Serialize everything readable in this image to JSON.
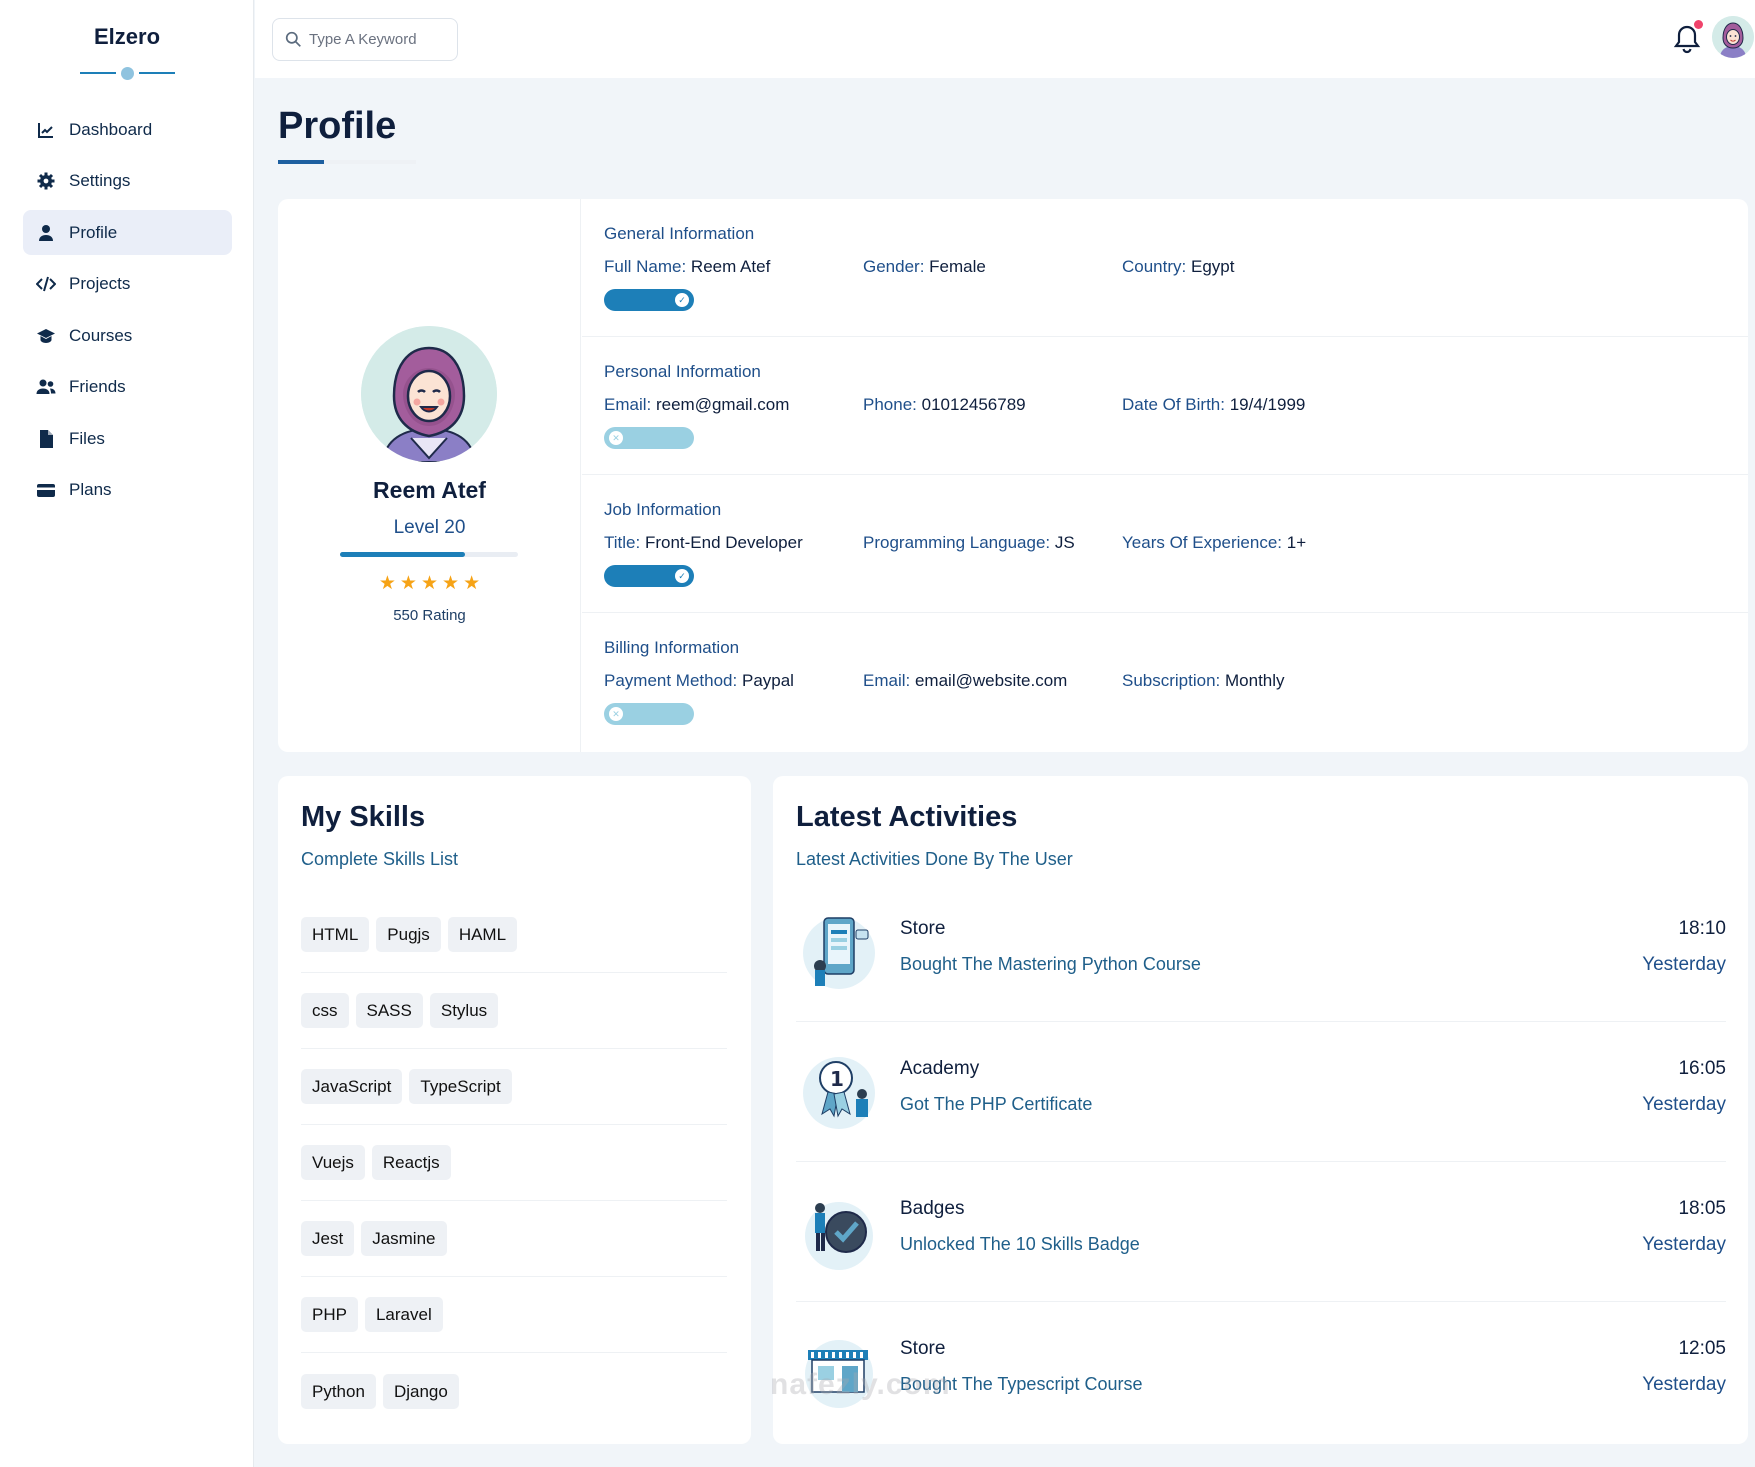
{
  "brand": "Elzero",
  "sidebar": {
    "items": [
      {
        "label": "Dashboard",
        "icon": "chart-line-icon",
        "active": false
      },
      {
        "label": "Settings",
        "icon": "gear-icon",
        "active": false
      },
      {
        "label": "Profile",
        "icon": "user-icon",
        "active": true
      },
      {
        "label": "Projects",
        "icon": "code-icon",
        "active": false
      },
      {
        "label": "Courses",
        "icon": "graduation-cap-icon",
        "active": false
      },
      {
        "label": "Friends",
        "icon": "users-icon",
        "active": false
      },
      {
        "label": "Files",
        "icon": "file-icon",
        "active": false
      },
      {
        "label": "Plans",
        "icon": "credit-card-icon",
        "active": false
      }
    ]
  },
  "header": {
    "search_placeholder": "Type A Keyword",
    "notification_icon": "bell-icon",
    "has_notification": true
  },
  "page": {
    "title": "Profile"
  },
  "profile": {
    "name": "Reem Atef",
    "level": "Level 20",
    "level_progress": 0.7,
    "stars": 5,
    "rating": "550 Rating"
  },
  "info_sections": [
    {
      "title": "General Information",
      "fields": [
        {
          "label": "Full Name:",
          "value": "Reem Atef"
        },
        {
          "label": "Gender:",
          "value": "Female"
        },
        {
          "label": "Country:",
          "value": "Egypt"
        }
      ],
      "toggle_on": true
    },
    {
      "title": "Personal Information",
      "fields": [
        {
          "label": "Email:",
          "value": "reem@gmail.com"
        },
        {
          "label": "Phone:",
          "value": "01012456789"
        },
        {
          "label": "Date Of Birth:",
          "value": "19/4/1999"
        }
      ],
      "toggle_on": false
    },
    {
      "title": "Job Information",
      "fields": [
        {
          "label": "Title:",
          "value": "Front-End Developer"
        },
        {
          "label": "Programming Language:",
          "value": "JS"
        },
        {
          "label": "Years Of Experience:",
          "value": "1+"
        }
      ],
      "toggle_on": true
    },
    {
      "title": "Billing Information",
      "fields": [
        {
          "label": "Payment Method:",
          "value": "Paypal"
        },
        {
          "label": "Email:",
          "value": "email@website.com"
        },
        {
          "label": "Subscription:",
          "value": "Monthly"
        }
      ],
      "toggle_on": false
    }
  ],
  "skills": {
    "title": "My Skills",
    "subtitle": "Complete Skills List",
    "rows": [
      [
        "HTML",
        "Pugjs",
        "HAML"
      ],
      [
        "css",
        "SASS",
        "Stylus"
      ],
      [
        "JavaScript",
        "TypeScript"
      ],
      [
        "Vuejs",
        "Reactjs"
      ],
      [
        "Jest",
        "Jasmine"
      ],
      [
        "PHP",
        "Laravel"
      ],
      [
        "Python",
        "Django"
      ]
    ]
  },
  "activities": {
    "title": "Latest Activities",
    "subtitle": "Latest Activities Done By The User",
    "items": [
      {
        "title": "Store",
        "desc": "Bought The Mastering Python Course",
        "time": "18:10",
        "day": "Yesterday",
        "icon": "store-phone-illustration-icon"
      },
      {
        "title": "Academy",
        "desc": "Got The PHP Certificate",
        "time": "16:05",
        "day": "Yesterday",
        "icon": "certificate-award-illustration-icon"
      },
      {
        "title": "Badges",
        "desc": "Unlocked The 10 Skills Badge",
        "time": "18:05",
        "day": "Yesterday",
        "icon": "badge-check-illustration-icon"
      },
      {
        "title": "Store",
        "desc": "Bought The Typescript Course",
        "time": "12:05",
        "day": "Yesterday",
        "icon": "storefront-illustration-icon"
      }
    ]
  },
  "watermark": "nafezly.com",
  "colors": {
    "primary": "#1d7fb8",
    "accent_dark": "#0f1f3d",
    "label_blue": "#1f4f8a",
    "star": "#f6a316",
    "notification": "#f0436b",
    "active_nav_bg": "#eaeef8",
    "toggle_off": "#9ad0e2"
  }
}
